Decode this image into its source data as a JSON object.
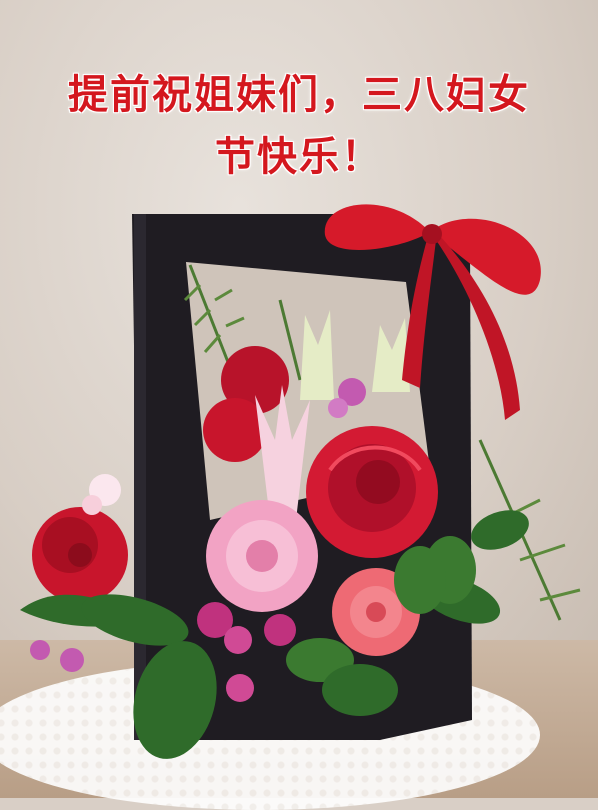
{
  "caption": {
    "line1": "提前祝姐妹们，三八妇女",
    "line2": "节快乐！"
  },
  "colors": {
    "caption": "#d4171e",
    "box": "#1f1c22",
    "ribbon": "#d61a2a",
    "rose": "#c8152c",
    "carnation_pink": "#f2a3c4",
    "carnation_coral": "#ee6a74",
    "lily": "#f6d2df",
    "leaf": "#2f6b2a"
  }
}
